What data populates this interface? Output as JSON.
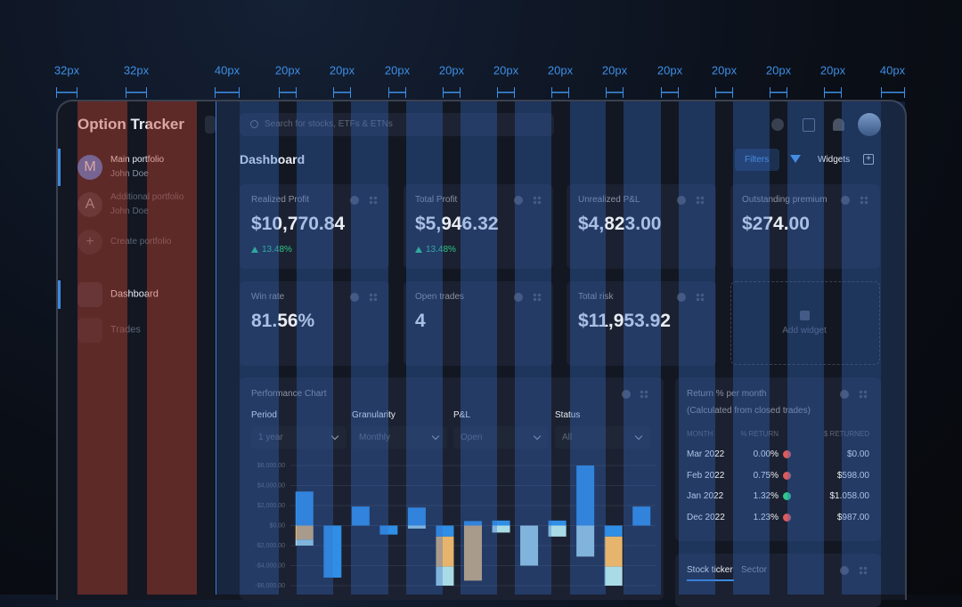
{
  "spacing_guides": [
    "32px",
    "32px",
    "40px",
    "20px",
    "20px",
    "20px",
    "20px",
    "20px",
    "20px",
    "20px",
    "20px",
    "20px",
    "20px",
    "20px",
    "40px"
  ],
  "sidebar": {
    "title": "Option Tracker",
    "portfolios": [
      {
        "initial": "M",
        "name": "Main portfolio",
        "owner": "John Doe"
      },
      {
        "initial": "A",
        "name": "Additional portfolio",
        "owner": "John Doe"
      }
    ],
    "create": "Create portfolio",
    "nav": [
      "Dashboard",
      "Trades"
    ]
  },
  "topbar": {
    "search_placeholder": "Search for stocks, ETFs & ETNs"
  },
  "header": {
    "title": "Dashboard",
    "filters": "Filters",
    "widgets": "Widgets"
  },
  "cards": [
    {
      "label": "Realized Profit",
      "value": "$10,770.84",
      "change": "13.48%"
    },
    {
      "label": "Total Profit",
      "value": "$5,946.32",
      "change": "13.48%"
    },
    {
      "label": "Unrealized P&L",
      "value": "$4,823.00"
    },
    {
      "label": "Outstanding premium",
      "value": "$274.00"
    },
    {
      "label": "Win rate",
      "value": "81.56%"
    },
    {
      "label": "Open trades",
      "value": "4"
    },
    {
      "label": "Total risk",
      "value": "$11,953.92"
    }
  ],
  "add_widget": "Add widget",
  "performance_filters": [
    {
      "label": "Period",
      "value": "1 year"
    },
    {
      "label": "Granularity",
      "value": "Monthly"
    },
    {
      "label": "P&L",
      "value": "Open"
    },
    {
      "label": "Status",
      "value": "All"
    }
  ],
  "chart_data": {
    "type": "bar",
    "title": "Performance Chart",
    "stacked": true,
    "ylim": [
      -6000,
      6000
    ],
    "yticks": [
      {
        "value": 6000,
        "label": "$6,000.00"
      },
      {
        "value": 4000,
        "label": "$4,000.00"
      },
      {
        "value": 2000,
        "label": "$2,000.00"
      },
      {
        "value": 0,
        "label": "$0.00"
      },
      {
        "value": -2000,
        "label": "-$2,000.00"
      },
      {
        "value": -4000,
        "label": "-$4,000.00"
      },
      {
        "value": -6000,
        "label": "-$6,000.00"
      }
    ],
    "grid": true,
    "series": [
      {
        "color": "#2f8fe6",
        "values": [
          3400,
          -5200,
          1900,
          -900,
          1800,
          -1100,
          450,
          500,
          null,
          500,
          6000,
          -1100,
          1900
        ]
      },
      {
        "color": "#e6b46c",
        "values": [
          -1400,
          null,
          null,
          null,
          null,
          -3000,
          -5500,
          null,
          null,
          null,
          null,
          -3000,
          null
        ]
      },
      {
        "color": "#a9dbe6",
        "values": [
          -600,
          null,
          null,
          null,
          -300,
          -1900,
          null,
          -700,
          -4000,
          -1100,
          -3100,
          -1900,
          null
        ]
      }
    ]
  },
  "returns": {
    "title": "Return % per month",
    "subtitle": "(Calculated from closed trades)",
    "columns": [
      "MONTH",
      "% RETURN",
      "$ RETURNED"
    ],
    "rows": [
      [
        "Mar 2022",
        "0.00%",
        "$0.00"
      ],
      [
        "Feb 2022",
        "0.75%",
        "$598.00"
      ],
      [
        "Jan 2022",
        "1.32%",
        "$1.058.00"
      ],
      [
        "Dec 2022",
        "1.23%",
        "$987.00"
      ]
    ]
  },
  "stock_ticker": {
    "tabs": [
      "Stock ticker",
      "Sector"
    ]
  }
}
